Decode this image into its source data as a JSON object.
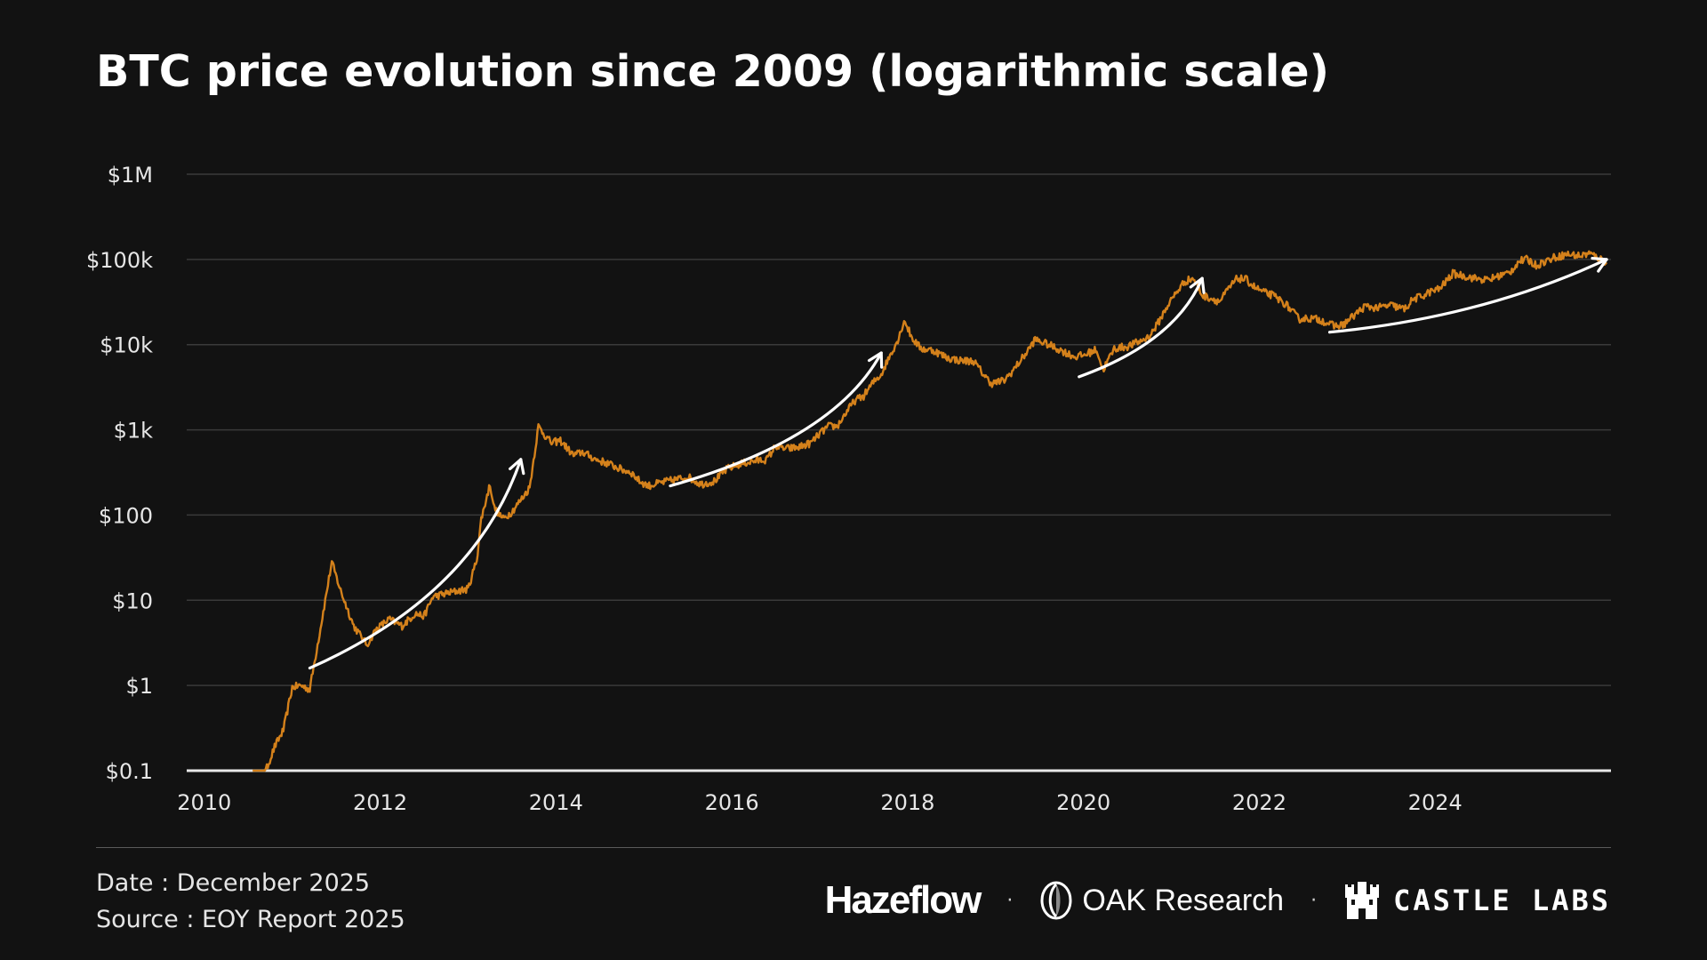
{
  "title": "BTC price evolution since 2009 (logarithmic scale)",
  "footer": {
    "date": "Date : December 2025",
    "source": "Source : EOY Report 2025"
  },
  "logos": {
    "hazeflow": "Hazeflow",
    "oak": "OAK Research",
    "castle": "CASTLE LABS",
    "separator": "·"
  },
  "colors": {
    "background": "#121212",
    "line": "#d4811b",
    "grid": "#3a3a3a",
    "arrows": "#ffffff",
    "text": "#e6e6e6"
  },
  "chart_data": {
    "type": "line",
    "title": "BTC price evolution since 2009 (logarithmic scale)",
    "xlabel": "",
    "ylabel": "",
    "yscale": "log",
    "ylim": [
      0.1,
      1000000
    ],
    "xlim": [
      2009.8,
      2026.0
    ],
    "grid": true,
    "legend": "none",
    "y_ticks": [
      {
        "value": 0.1,
        "label": "$0.1"
      },
      {
        "value": 1,
        "label": "$1"
      },
      {
        "value": 10,
        "label": "$10"
      },
      {
        "value": 100,
        "label": "$100"
      },
      {
        "value": 1000,
        "label": "$1k"
      },
      {
        "value": 10000,
        "label": "$10k"
      },
      {
        "value": 100000,
        "label": "$100k"
      },
      {
        "value": 1000000,
        "label": "$1M"
      }
    ],
    "x_ticks": [
      {
        "value": 2010,
        "label": "2010"
      },
      {
        "value": 2012,
        "label": "2012"
      },
      {
        "value": 2014,
        "label": "2014"
      },
      {
        "value": 2016,
        "label": "2016"
      },
      {
        "value": 2018,
        "label": "2018"
      },
      {
        "value": 2020,
        "label": "2020"
      },
      {
        "value": 2022,
        "label": "2022"
      },
      {
        "value": 2024,
        "label": "2024"
      }
    ],
    "series": [
      {
        "name": "BTC price",
        "x": [
          2010.55,
          2010.6,
          2010.7,
          2010.8,
          2010.9,
          2011.0,
          2011.1,
          2011.2,
          2011.3,
          2011.45,
          2011.55,
          2011.7,
          2011.85,
          2011.95,
          2012.1,
          2012.25,
          2012.4,
          2012.5,
          2012.6,
          2012.75,
          2012.9,
          2013.0,
          2013.1,
          2013.15,
          2013.25,
          2013.3,
          2013.4,
          2013.5,
          2013.6,
          2013.7,
          2013.8,
          2013.9,
          2013.95,
          2014.05,
          2014.2,
          2014.3,
          2014.45,
          2014.6,
          2014.75,
          2014.85,
          2014.95,
          2015.05,
          2015.2,
          2015.35,
          2015.5,
          2015.65,
          2015.8,
          2015.95,
          2016.1,
          2016.25,
          2016.4,
          2016.5,
          2016.6,
          2016.75,
          2016.9,
          2017.0,
          2017.1,
          2017.2,
          2017.3,
          2017.4,
          2017.5,
          2017.6,
          2017.7,
          2017.8,
          2017.9,
          2017.96,
          2018.05,
          2018.15,
          2018.3,
          2018.45,
          2018.6,
          2018.75,
          2018.9,
          2018.96,
          2019.1,
          2019.2,
          2019.35,
          2019.45,
          2019.6,
          2019.75,
          2019.9,
          2020.0,
          2020.15,
          2020.22,
          2020.35,
          2020.5,
          2020.65,
          2020.75,
          2020.85,
          2020.95,
          2021.05,
          2021.15,
          2021.25,
          2021.35,
          2021.45,
          2021.55,
          2021.65,
          2021.75,
          2021.85,
          2021.95,
          2022.05,
          2022.15,
          2022.3,
          2022.45,
          2022.55,
          2022.7,
          2022.85,
          2022.95,
          2023.1,
          2023.2,
          2023.35,
          2023.5,
          2023.65,
          2023.75,
          2023.85,
          2023.95,
          2024.05,
          2024.2,
          2024.3,
          2024.45,
          2024.6,
          2024.7,
          2024.85,
          2024.95,
          2025.05,
          2025.15,
          2025.25,
          2025.35,
          2025.5,
          2025.65,
          2025.75,
          2025.85,
          2025.95
        ],
        "values": [
          0.06,
          0.07,
          0.1,
          0.19,
          0.3,
          0.95,
          1.0,
          0.9,
          3.5,
          28,
          13,
          5,
          3,
          4.5,
          6,
          5,
          7,
          6.5,
          11,
          12,
          13,
          13.5,
          30,
          90,
          230,
          120,
          90,
          110,
          150,
          210,
          1100,
          800,
          700,
          750,
          500,
          550,
          450,
          400,
          340,
          320,
          250,
          220,
          240,
          260,
          280,
          230,
          250,
          350,
          400,
          430,
          450,
          650,
          600,
          620,
          700,
          900,
          1100,
          1100,
          1600,
          2200,
          2500,
          3500,
          4500,
          7500,
          12000,
          19500,
          12000,
          9000,
          8500,
          7000,
          6500,
          6400,
          4000,
          3500,
          3800,
          5000,
          8000,
          11500,
          10000,
          8500,
          7200,
          7500,
          8800,
          5000,
          9000,
          9500,
          11000,
          12500,
          18000,
          28000,
          40000,
          55000,
          60000,
          38000,
          35000,
          32000,
          45000,
          60000,
          58000,
          47000,
          41000,
          38000,
          30000,
          20000,
          20500,
          19500,
          16500,
          17000,
          23000,
          28000,
          27000,
          29000,
          26000,
          34000,
          37000,
          42000,
          45000,
          68000,
          65000,
          60000,
          57000,
          63000,
          70000,
          95000,
          100000,
          85000,
          95000,
          105000,
          115000,
          110000,
          118000,
          105000,
          92000
        ]
      }
    ],
    "annotations": [
      {
        "type": "arrow",
        "from": [
          2011.2,
          1.6
        ],
        "to": [
          2013.6,
          450
        ],
        "shape": "curved-up"
      },
      {
        "type": "arrow",
        "from": [
          2015.3,
          220
        ],
        "to": [
          2017.7,
          8000
        ],
        "shape": "curved-up"
      },
      {
        "type": "arrow",
        "from": [
          2019.95,
          4200
        ],
        "to": [
          2021.35,
          60000
        ],
        "shape": "curved-up"
      },
      {
        "type": "arrow",
        "from": [
          2022.8,
          14000
        ],
        "to": [
          2025.95,
          100000
        ],
        "shape": "gentle-curve"
      }
    ]
  }
}
